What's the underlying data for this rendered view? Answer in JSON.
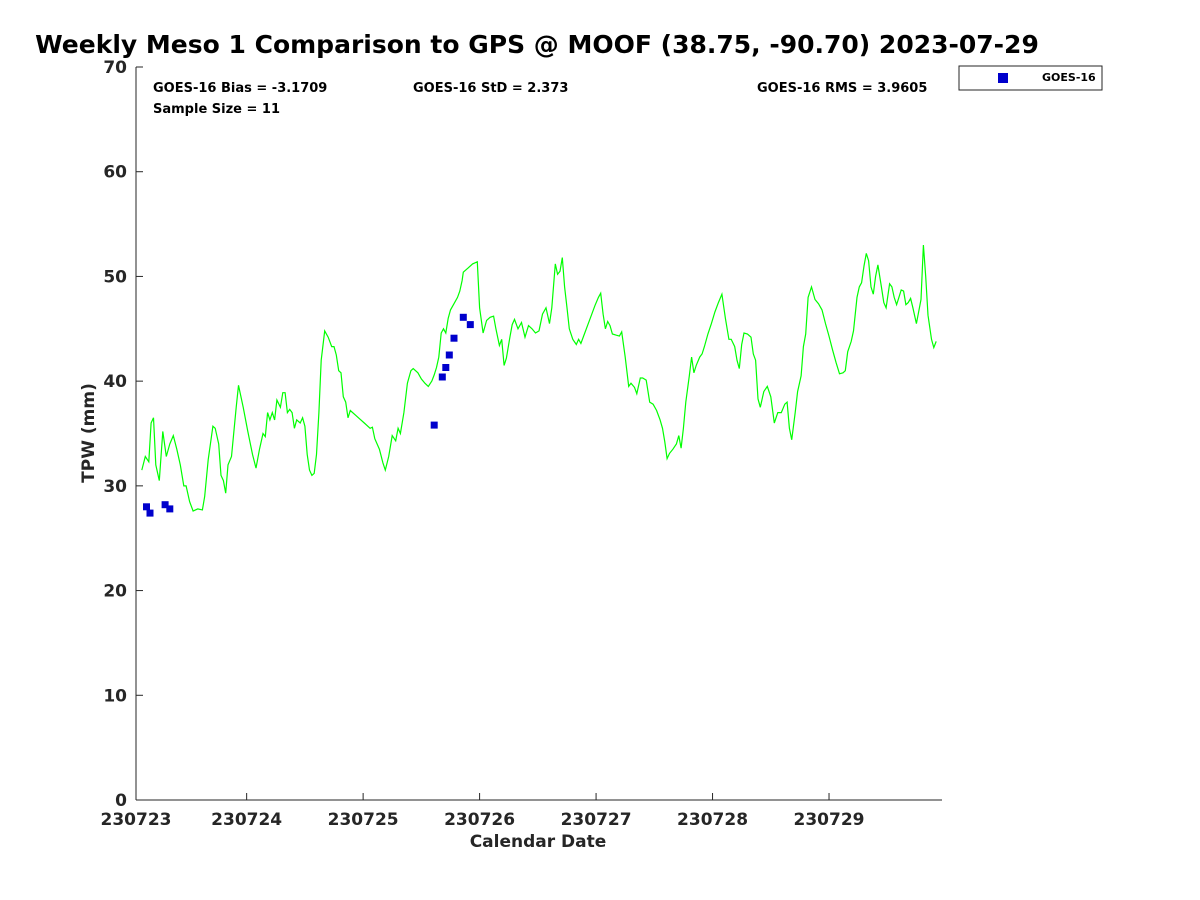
{
  "chart_data": {
    "type": "line",
    "title": "Weekly Meso 1 Comparison to GPS @ MOOF (38.75, -90.70) 2023-07-29",
    "xlabel": "Calendar Date",
    "ylabel": "TPW (mm)",
    "xlim": [
      23023.05,
      23029.97
    ],
    "ylim": [
      0,
      70
    ],
    "x_ticks": [
      {
        "value": 23023,
        "label": "230723"
      },
      {
        "value": 23024,
        "label": "230724"
      },
      {
        "value": 23025,
        "label": "230725"
      },
      {
        "value": 23026,
        "label": "230726"
      },
      {
        "value": 23027,
        "label": "230727"
      },
      {
        "value": 23028,
        "label": "230728"
      },
      {
        "value": 23029,
        "label": "230729"
      }
    ],
    "y_ticks": [
      0,
      10,
      20,
      30,
      40,
      50,
      60,
      70
    ],
    "annotations": {
      "bias": "GOES-16 Bias = -3.1709",
      "std": "GOES-16 StD = 2.373",
      "rms": "GOES-16 RMS = 3.9605",
      "sample": "Sample Size = 11"
    },
    "legend": {
      "placement": "top-right",
      "entries": [
        "GOES-16"
      ]
    },
    "series": [
      {
        "kind": "line",
        "color": "#00ff00",
        "points": [
          [
            23023.1,
            31.5
          ],
          [
            23023.13,
            32.8
          ],
          [
            23023.16,
            32.3
          ],
          [
            23023.18,
            36.0
          ],
          [
            23023.2,
            36.5
          ],
          [
            23023.22,
            32.0
          ],
          [
            23023.25,
            30.5
          ],
          [
            23023.28,
            35.2
          ],
          [
            23023.31,
            32.8
          ],
          [
            23023.34,
            34.0
          ],
          [
            23023.37,
            34.8
          ],
          [
            23023.4,
            33.5
          ],
          [
            23023.43,
            32.0
          ],
          [
            23023.46,
            30.0
          ],
          [
            23023.48,
            30.0
          ],
          [
            23023.51,
            28.5
          ],
          [
            23023.54,
            27.6
          ],
          [
            23023.58,
            27.8
          ],
          [
            23023.62,
            27.7
          ],
          [
            23023.64,
            29.0
          ],
          [
            23023.67,
            32.5
          ],
          [
            23023.71,
            35.7
          ],
          [
            23023.73,
            35.5
          ],
          [
            23023.76,
            34.0
          ],
          [
            23023.78,
            31.0
          ],
          [
            23023.8,
            30.5
          ],
          [
            23023.82,
            29.3
          ],
          [
            23023.84,
            32.0
          ],
          [
            23023.87,
            32.8
          ],
          [
            23023.91,
            37.5
          ],
          [
            23023.93,
            39.6
          ],
          [
            23023.97,
            37.5
          ],
          [
            23024.01,
            35.2
          ],
          [
            23024.05,
            33.0
          ],
          [
            23024.08,
            31.7
          ],
          [
            23024.11,
            33.5
          ],
          [
            23024.14,
            35.0
          ],
          [
            23024.16,
            34.7
          ],
          [
            23024.18,
            37.0
          ],
          [
            23024.2,
            36.3
          ],
          [
            23024.22,
            37.0
          ],
          [
            23024.24,
            36.3
          ],
          [
            23024.26,
            38.2
          ],
          [
            23024.29,
            37.5
          ],
          [
            23024.31,
            38.9
          ],
          [
            23024.33,
            38.9
          ],
          [
            23024.35,
            37.0
          ],
          [
            23024.37,
            37.3
          ],
          [
            23024.39,
            37.0
          ],
          [
            23024.41,
            35.5
          ],
          [
            23024.43,
            36.3
          ],
          [
            23024.46,
            36.0
          ],
          [
            23024.48,
            36.5
          ],
          [
            23024.5,
            35.7
          ],
          [
            23024.52,
            33.0
          ],
          [
            23024.54,
            31.5
          ],
          [
            23024.56,
            31.0
          ],
          [
            23024.58,
            31.2
          ],
          [
            23024.6,
            33.0
          ],
          [
            23024.62,
            37.0
          ],
          [
            23024.64,
            42.0
          ],
          [
            23024.67,
            44.8
          ],
          [
            23024.7,
            44.2
          ],
          [
            23024.73,
            43.3
          ],
          [
            23024.75,
            43.3
          ],
          [
            23024.77,
            42.5
          ],
          [
            23024.79,
            41.0
          ],
          [
            23024.81,
            40.8
          ],
          [
            23024.83,
            38.5
          ],
          [
            23024.85,
            38.0
          ],
          [
            23024.87,
            36.5
          ],
          [
            23024.89,
            37.2
          ],
          [
            23024.93,
            36.8
          ],
          [
            23024.97,
            36.4
          ],
          [
            23025.01,
            36.0
          ],
          [
            23025.06,
            35.5
          ],
          [
            23025.08,
            35.6
          ],
          [
            23025.1,
            34.5
          ],
          [
            23025.14,
            33.5
          ],
          [
            23025.17,
            32.2
          ],
          [
            23025.19,
            31.5
          ],
          [
            23025.22,
            32.8
          ],
          [
            23025.25,
            34.8
          ],
          [
            23025.28,
            34.3
          ],
          [
            23025.3,
            35.5
          ],
          [
            23025.32,
            35.0
          ],
          [
            23025.35,
            37.0
          ],
          [
            23025.38,
            39.8
          ],
          [
            23025.41,
            41.0
          ],
          [
            23025.43,
            41.2
          ],
          [
            23025.47,
            40.8
          ],
          [
            23025.5,
            40.2
          ],
          [
            23025.53,
            39.8
          ],
          [
            23025.56,
            39.5
          ],
          [
            23025.59,
            40.0
          ],
          [
            23025.61,
            40.6
          ],
          [
            23025.63,
            41.3
          ],
          [
            23025.65,
            42.3
          ],
          [
            23025.67,
            44.6
          ],
          [
            23025.69,
            45.0
          ],
          [
            23025.71,
            44.6
          ],
          [
            23025.73,
            46.0
          ],
          [
            23025.75,
            46.8
          ],
          [
            23025.78,
            47.4
          ],
          [
            23025.81,
            48.0
          ],
          [
            23025.83,
            48.6
          ],
          [
            23025.85,
            49.6
          ],
          [
            23025.86,
            50.4
          ],
          [
            23025.9,
            50.8
          ],
          [
            23025.94,
            51.2
          ],
          [
            23025.98,
            51.4
          ],
          [
            23026.0,
            47.0
          ],
          [
            23026.03,
            44.6
          ],
          [
            23026.06,
            45.8
          ],
          [
            23026.09,
            46.1
          ],
          [
            23026.12,
            46.2
          ],
          [
            23026.14,
            45.0
          ],
          [
            23026.17,
            43.4
          ],
          [
            23026.19,
            44.0
          ],
          [
            23026.21,
            41.5
          ],
          [
            23026.23,
            42.2
          ],
          [
            23026.26,
            44.2
          ],
          [
            23026.28,
            45.4
          ],
          [
            23026.3,
            45.9
          ],
          [
            23026.33,
            45.0
          ],
          [
            23026.36,
            45.6
          ],
          [
            23026.39,
            44.2
          ],
          [
            23026.42,
            45.3
          ],
          [
            23026.45,
            45.0
          ],
          [
            23026.48,
            44.6
          ],
          [
            23026.51,
            44.8
          ],
          [
            23026.54,
            46.4
          ],
          [
            23026.57,
            47.0
          ],
          [
            23026.6,
            45.5
          ],
          [
            23026.62,
            47.0
          ],
          [
            23026.65,
            51.2
          ],
          [
            23026.67,
            50.2
          ],
          [
            23026.69,
            50.5
          ],
          [
            23026.71,
            51.8
          ],
          [
            23026.73,
            49.0
          ],
          [
            23026.75,
            47.0
          ],
          [
            23026.77,
            45.0
          ],
          [
            23026.8,
            44.0
          ],
          [
            23026.83,
            43.5
          ],
          [
            23026.85,
            44.0
          ],
          [
            23026.87,
            43.6
          ],
          [
            23026.9,
            44.5
          ],
          [
            23026.93,
            45.4
          ],
          [
            23026.96,
            46.3
          ],
          [
            23026.99,
            47.2
          ],
          [
            23027.02,
            48.0
          ],
          [
            23027.04,
            48.4
          ],
          [
            23027.06,
            46.4
          ],
          [
            23027.08,
            45.0
          ],
          [
            23027.1,
            45.7
          ],
          [
            23027.12,
            45.3
          ],
          [
            23027.14,
            44.5
          ],
          [
            23027.17,
            44.4
          ],
          [
            23027.2,
            44.3
          ],
          [
            23027.22,
            44.7
          ],
          [
            23027.25,
            42.3
          ],
          [
            23027.28,
            39.5
          ],
          [
            23027.3,
            39.8
          ],
          [
            23027.33,
            39.4
          ],
          [
            23027.35,
            38.8
          ],
          [
            23027.38,
            40.3
          ],
          [
            23027.4,
            40.3
          ],
          [
            23027.43,
            40.1
          ],
          [
            23027.46,
            38.0
          ],
          [
            23027.49,
            37.8
          ],
          [
            23027.52,
            37.2
          ],
          [
            23027.55,
            36.3
          ],
          [
            23027.57,
            35.5
          ],
          [
            23027.59,
            34.2
          ],
          [
            23027.61,
            32.6
          ],
          [
            23027.63,
            33.1
          ],
          [
            23027.66,
            33.5
          ],
          [
            23027.69,
            34.0
          ],
          [
            23027.71,
            34.8
          ],
          [
            23027.73,
            33.6
          ],
          [
            23027.75,
            35.5
          ],
          [
            23027.77,
            38.0
          ],
          [
            23027.8,
            40.5
          ],
          [
            23027.82,
            42.3
          ],
          [
            23027.84,
            40.8
          ],
          [
            23027.86,
            41.5
          ],
          [
            23027.89,
            42.3
          ],
          [
            23027.91,
            42.6
          ],
          [
            23027.93,
            43.3
          ],
          [
            23027.96,
            44.5
          ],
          [
            23027.99,
            45.5
          ],
          [
            23028.02,
            46.6
          ],
          [
            23028.05,
            47.5
          ],
          [
            23028.08,
            48.3
          ],
          [
            23028.11,
            46.0
          ],
          [
            23028.14,
            44.0
          ],
          [
            23028.16,
            44.0
          ],
          [
            23028.19,
            43.3
          ],
          [
            23028.21,
            42.0
          ],
          [
            23028.23,
            41.2
          ],
          [
            23028.25,
            43.5
          ],
          [
            23028.27,
            44.6
          ],
          [
            23028.3,
            44.5
          ],
          [
            23028.33,
            44.2
          ],
          [
            23028.35,
            42.6
          ],
          [
            23028.37,
            42.0
          ],
          [
            23028.39,
            38.3
          ],
          [
            23028.41,
            37.5
          ],
          [
            23028.44,
            39.0
          ],
          [
            23028.47,
            39.5
          ],
          [
            23028.5,
            38.5
          ],
          [
            23028.53,
            36.0
          ],
          [
            23028.56,
            37.0
          ],
          [
            23028.59,
            37.0
          ],
          [
            23028.62,
            37.8
          ],
          [
            23028.64,
            38.0
          ],
          [
            23028.66,
            35.5
          ],
          [
            23028.68,
            34.4
          ],
          [
            23028.71,
            37.0
          ],
          [
            23028.73,
            39.0
          ],
          [
            23028.76,
            40.5
          ],
          [
            23028.78,
            43.3
          ],
          [
            23028.8,
            44.5
          ],
          [
            23028.82,
            48.0
          ],
          [
            23028.85,
            49.0
          ],
          [
            23028.88,
            47.8
          ],
          [
            23028.91,
            47.4
          ],
          [
            23028.94,
            46.8
          ],
          [
            23028.97,
            45.5
          ],
          [
            23029.0,
            44.3
          ],
          [
            23029.03,
            43.0
          ],
          [
            23029.06,
            41.8
          ],
          [
            23029.09,
            40.7
          ],
          [
            23029.12,
            40.8
          ],
          [
            23029.14,
            41.0
          ],
          [
            23029.16,
            42.8
          ],
          [
            23029.19,
            43.8
          ],
          [
            23029.21,
            44.8
          ],
          [
            23029.24,
            48.0
          ],
          [
            23029.26,
            49.0
          ],
          [
            23029.28,
            49.4
          ],
          [
            23029.3,
            51.0
          ],
          [
            23029.32,
            52.2
          ],
          [
            23029.34,
            51.5
          ],
          [
            23029.36,
            49.0
          ],
          [
            23029.38,
            48.3
          ],
          [
            23029.4,
            50.0
          ],
          [
            23029.42,
            51.1
          ],
          [
            23029.45,
            49.0
          ],
          [
            23029.47,
            47.5
          ],
          [
            23029.49,
            47.0
          ],
          [
            23029.52,
            49.3
          ],
          [
            23029.54,
            49.0
          ],
          [
            23029.56,
            48.0
          ],
          [
            23029.58,
            47.3
          ],
          [
            23029.6,
            48.0
          ],
          [
            23029.62,
            48.7
          ],
          [
            23029.64,
            48.6
          ],
          [
            23029.66,
            47.3
          ],
          [
            23029.68,
            47.5
          ],
          [
            23029.7,
            47.9
          ],
          [
            23029.72,
            47.0
          ],
          [
            23029.75,
            45.5
          ],
          [
            23029.79,
            47.8
          ],
          [
            23029.81,
            53.0
          ],
          [
            23029.83,
            50.0
          ],
          [
            23029.85,
            46.3
          ],
          [
            23029.88,
            44.0
          ],
          [
            23029.9,
            43.2
          ],
          [
            23029.92,
            43.8
          ]
        ]
      },
      {
        "name": "GOES-16",
        "kind": "scatter",
        "color": "#0000cc",
        "points": [
          [
            23023.14,
            28.0
          ],
          [
            23023.17,
            27.4
          ],
          [
            23023.3,
            28.2
          ],
          [
            23023.34,
            27.8
          ],
          [
            23025.61,
            35.8
          ],
          [
            23025.68,
            40.4
          ],
          [
            23025.71,
            41.3
          ],
          [
            23025.74,
            42.5
          ],
          [
            23025.78,
            44.1
          ],
          [
            23025.86,
            46.1
          ],
          [
            23025.92,
            45.4
          ]
        ]
      }
    ]
  }
}
